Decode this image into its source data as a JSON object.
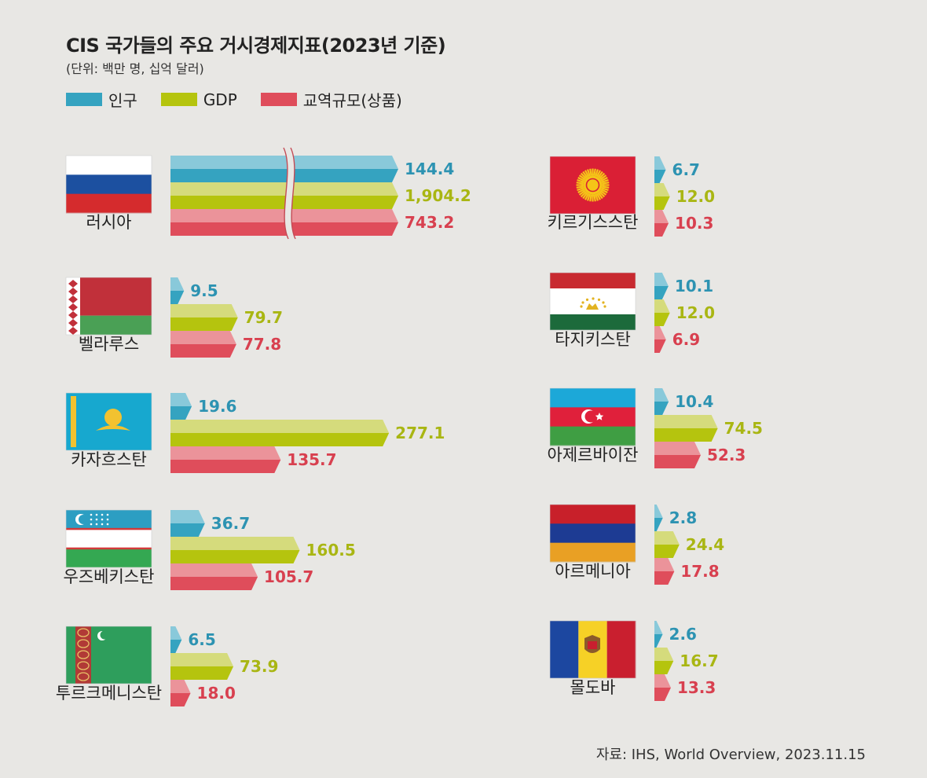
{
  "title": "CIS 국가들의 주요 거시경제지표(2023년 기준)",
  "subtitle": "(단위: 백만 명, 십억 달러)",
  "legend": [
    {
      "label": "인구",
      "color": "#35a3c0"
    },
    {
      "label": "GDP",
      "color": "#b5c40e"
    },
    {
      "label": "교역규모(상품)",
      "color": "#df4d5b"
    }
  ],
  "source": "자료: IHS, World Overview, 2023.11.15",
  "colors": {
    "population": "#35a3c0",
    "population_light": "#89c9da",
    "gdp": "#b5c40e",
    "gdp_light": "#d5db7c",
    "trade": "#df4d5b",
    "trade_light": "#eb939a",
    "value_population": "#2d93b2",
    "value_gdp": "#a9b613",
    "value_trade": "#d8404f"
  },
  "chart_data": {
    "type": "bar",
    "orientation": "horizontal",
    "series_names": [
      "인구",
      "GDP",
      "교역규모(상품)"
    ],
    "units": "백만 명, 십억 달러",
    "axis_break": {
      "country": "러시아",
      "note": "bars truncated with break mark"
    },
    "countries": [
      {
        "name": "러시아",
        "flag": "russia",
        "values": [
          144.4,
          1904.2,
          743.2
        ],
        "labels": [
          "144.4",
          "1,904.2",
          "743.2"
        ]
      },
      {
        "name": "벨라루스",
        "flag": "belarus",
        "values": [
          9.5,
          79.7,
          77.8
        ],
        "labels": [
          "9.5",
          "79.7",
          "77.8"
        ]
      },
      {
        "name": "카자흐스탄",
        "flag": "kazakhstan",
        "values": [
          19.6,
          277.1,
          135.7
        ],
        "labels": [
          "19.6",
          "277.1",
          "135.7"
        ]
      },
      {
        "name": "우즈베키스탄",
        "flag": "uzbekistan",
        "values": [
          36.7,
          160.5,
          105.7
        ],
        "labels": [
          "36.7",
          "160.5",
          "105.7"
        ]
      },
      {
        "name": "투르크메니스탄",
        "flag": "turkmenistan",
        "values": [
          6.5,
          73.9,
          18.0
        ],
        "labels": [
          "6.5",
          "73.9",
          "18.0"
        ]
      },
      {
        "name": "키르기스스탄",
        "flag": "kyrgyzstan",
        "values": [
          6.7,
          12.0,
          10.3
        ],
        "labels": [
          "6.7",
          "12.0",
          "10.3"
        ]
      },
      {
        "name": "타지키스탄",
        "flag": "tajikistan",
        "values": [
          10.1,
          12.0,
          6.9
        ],
        "labels": [
          "10.1",
          "12.0",
          "6.9"
        ]
      },
      {
        "name": "아제르바이잔",
        "flag": "azerbaijan",
        "values": [
          10.4,
          74.5,
          52.3
        ],
        "labels": [
          "10.4",
          "74.5",
          "52.3"
        ]
      },
      {
        "name": "아르메니아",
        "flag": "armenia",
        "values": [
          2.8,
          24.4,
          17.8
        ],
        "labels": [
          "2.8",
          "24.4",
          "17.8"
        ]
      },
      {
        "name": "몰도바",
        "flag": "moldova",
        "values": [
          2.6,
          16.7,
          13.3
        ],
        "labels": [
          "2.6",
          "16.7",
          "13.3"
        ]
      }
    ]
  }
}
